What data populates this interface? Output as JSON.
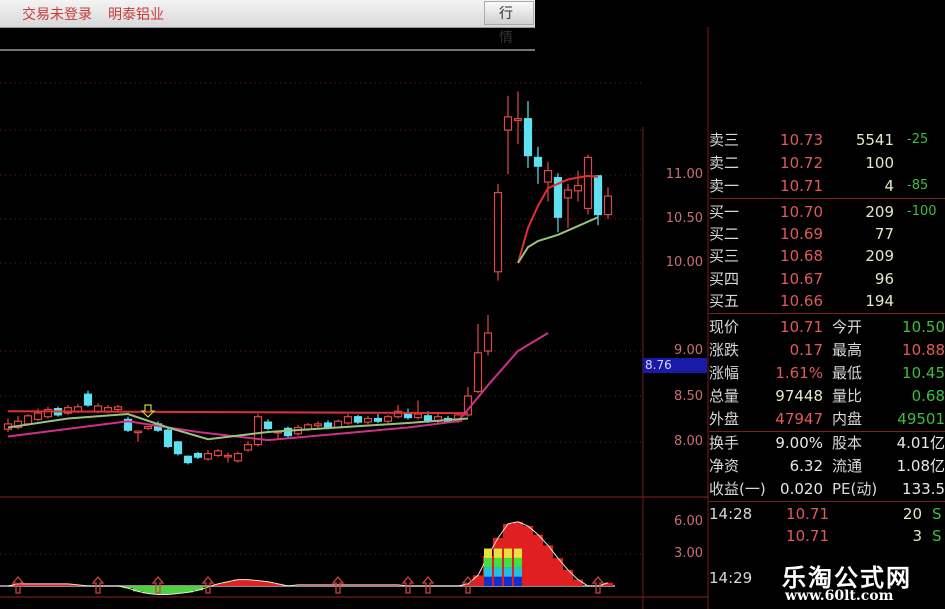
{
  "topbar": {
    "status": "交易未登录",
    "stock_name": "明泰铝业",
    "quote_button": "行 情"
  },
  "axis": {
    "price_ticks": [
      "11.00",
      "10.50",
      "10.00",
      "9.00",
      "8.50",
      "8.00"
    ],
    "indicator_ticks": [
      "6.00",
      "3.00"
    ],
    "current_price_marker": "8.76"
  },
  "colors": {
    "up": "#e04848",
    "down": "#5ee0f0",
    "ma_red": "#e03030",
    "ma_pink": "#d02f8a",
    "ma_green": "#9ac27a",
    "grid": "#7a1d1d"
  },
  "chart_data": {
    "type": "candlestick",
    "price_axis": {
      "ticks": [
        8.0,
        8.5,
        9.0,
        10.0,
        10.5,
        11.0
      ]
    },
    "candles": [
      [
        8.13,
        8.25,
        8.1,
        8.19
      ],
      [
        8.15,
        8.28,
        8.13,
        8.22
      ],
      [
        8.19,
        8.3,
        8.17,
        8.28
      ],
      [
        8.24,
        8.36,
        8.22,
        8.31
      ],
      [
        8.27,
        8.38,
        8.25,
        8.35
      ],
      [
        8.36,
        8.38,
        8.27,
        8.29
      ],
      [
        8.31,
        8.4,
        8.29,
        8.37
      ],
      [
        8.33,
        8.41,
        8.31,
        8.38
      ],
      [
        8.52,
        8.56,
        8.38,
        8.4
      ],
      [
        8.33,
        8.42,
        8.31,
        8.39
      ],
      [
        8.33,
        8.4,
        8.31,
        8.37
      ],
      [
        8.35,
        8.4,
        8.33,
        8.38
      ],
      [
        8.24,
        8.27,
        8.1,
        8.12
      ],
      [
        8.1,
        8.11,
        7.99,
        8.11
      ],
      [
        8.14,
        8.15,
        8.12,
        8.16
      ],
      [
        8.19,
        8.22,
        8.1,
        8.12
      ],
      [
        8.12,
        8.14,
        7.92,
        7.94
      ],
      [
        7.99,
        8.0,
        7.84,
        7.86
      ],
      [
        7.83,
        7.84,
        7.74,
        7.76
      ],
      [
        7.86,
        7.88,
        7.8,
        7.82
      ],
      [
        7.8,
        7.9,
        7.78,
        7.86
      ],
      [
        7.84,
        7.91,
        7.82,
        7.89
      ],
      [
        7.83,
        7.87,
        7.76,
        7.84
      ],
      [
        7.78,
        7.88,
        7.76,
        7.86
      ],
      [
        7.9,
        8.0,
        7.88,
        7.96
      ],
      [
        7.96,
        8.3,
        7.94,
        8.27
      ],
      [
        8.21,
        8.24,
        8.12,
        8.14
      ],
      [
        8.09,
        8.11,
        8.03,
        8.11
      ],
      [
        8.14,
        8.16,
        8.04,
        8.06
      ],
      [
        8.08,
        8.18,
        8.06,
        8.15
      ],
      [
        8.13,
        8.2,
        8.11,
        8.18
      ],
      [
        8.17,
        8.22,
        8.14,
        8.19
      ],
      [
        8.2,
        8.23,
        8.13,
        8.15
      ],
      [
        8.15,
        8.24,
        8.14,
        8.22
      ],
      [
        8.2,
        8.3,
        8.18,
        8.27
      ],
      [
        8.27,
        8.29,
        8.19,
        8.21
      ],
      [
        8.21,
        8.28,
        8.19,
        8.25
      ],
      [
        8.25,
        8.3,
        8.2,
        8.22
      ],
      [
        8.22,
        8.29,
        8.2,
        8.27
      ],
      [
        8.27,
        8.4,
        8.25,
        8.33
      ],
      [
        8.31,
        8.36,
        8.24,
        8.26
      ],
      [
        8.26,
        8.45,
        8.24,
        8.3
      ],
      [
        8.28,
        8.33,
        8.2,
        8.22
      ],
      [
        8.22,
        8.3,
        8.2,
        8.27
      ],
      [
        8.25,
        8.28,
        8.2,
        8.22
      ],
      [
        8.22,
        8.32,
        8.2,
        8.29
      ],
      [
        8.29,
        8.6,
        8.27,
        8.5
      ],
      [
        8.55,
        9.3,
        8.53,
        8.98
      ],
      [
        9.0,
        9.4,
        8.95,
        9.2
      ],
      [
        9.9,
        10.9,
        9.8,
        10.8
      ],
      [
        11.51,
        11.9,
        11.01,
        11.66
      ],
      [
        11.62,
        11.95,
        11.35,
        11.64
      ],
      [
        11.64,
        11.84,
        11.08,
        11.22
      ],
      [
        11.2,
        11.32,
        10.9,
        11.1
      ],
      [
        10.92,
        11.15,
        10.7,
        11.05
      ],
      [
        10.97,
        11.02,
        10.35,
        10.52
      ],
      [
        10.74,
        10.9,
        10.4,
        10.83
      ],
      [
        10.82,
        11.05,
        10.7,
        10.88
      ],
      [
        10.62,
        11.23,
        10.55,
        11.2
      ],
      [
        10.99,
        11.0,
        10.43,
        10.55
      ],
      [
        10.55,
        10.86,
        10.5,
        10.76
      ]
    ],
    "moving_averages": [
      {
        "color": "#e03030",
        "points": [
          [
            0,
            8.33
          ],
          [
            46,
            8.31
          ]
        ]
      },
      {
        "color": "#e03030",
        "points": [
          [
            51,
            10.0
          ],
          [
            52,
            10.4
          ],
          [
            53,
            10.65
          ],
          [
            54,
            10.85
          ],
          [
            56,
            10.95
          ],
          [
            58,
            10.99
          ],
          [
            59,
            10.98
          ]
        ]
      },
      {
        "color": "#d02f8a",
        "points": [
          [
            0,
            8.05
          ],
          [
            12,
            8.22
          ],
          [
            19,
            8.1
          ],
          [
            26,
            8.01
          ],
          [
            40,
            8.15
          ],
          [
            45,
            8.22
          ],
          [
            46,
            8.35
          ],
          [
            48,
            8.62
          ],
          [
            51,
            9.0
          ],
          [
            54,
            9.2
          ]
        ]
      },
      {
        "color": "#9ac27a",
        "points": [
          [
            0,
            8.15
          ],
          [
            6,
            8.25
          ],
          [
            12,
            8.3
          ],
          [
            16,
            8.15
          ],
          [
            20,
            8.02
          ],
          [
            26,
            8.1
          ],
          [
            40,
            8.2
          ],
          [
            46,
            8.25
          ]
        ]
      },
      {
        "color": "#9ac27a",
        "points": [
          [
            51,
            10.0
          ],
          [
            52,
            10.18
          ],
          [
            53,
            10.25
          ],
          [
            55,
            10.32
          ],
          [
            57,
            10.42
          ],
          [
            59,
            10.52
          ]
        ]
      }
    ],
    "indicator": {
      "ticks": [
        3.0,
        6.0
      ],
      "values": [
        0,
        0.2,
        0.2,
        0.2,
        0.2,
        0.2,
        0.2,
        0.1,
        0,
        0,
        0,
        0,
        -0.2,
        -0.5,
        -0.7,
        -0.8,
        -0.8,
        -0.7,
        -0.6,
        -0.4,
        -0.1,
        0.2,
        0.4,
        0.6,
        0.6,
        0.5,
        0.4,
        0.2,
        0,
        0.1,
        0.1,
        0.1,
        0.1,
        0.1,
        0.1,
        0.1,
        0.1,
        0.1,
        0.1,
        0.1,
        0,
        0,
        0,
        0,
        0,
        0,
        0.2,
        1.0,
        2.8,
        4.5,
        5.8,
        6.0,
        5.6,
        4.8,
        3.8,
        2.6,
        1.5,
        0.6,
        0,
        0,
        0.3
      ],
      "arrow_indices": [
        1,
        9,
        15,
        20,
        33,
        40,
        42,
        46,
        59
      ],
      "colored_bar_indices": [
        48,
        49,
        50,
        51
      ],
      "colored_bar_level": 3.5
    }
  },
  "order_book": {
    "sell": [
      {
        "label": "卖三",
        "price": "10.73",
        "volume": "5541",
        "change": "-25"
      },
      {
        "label": "卖二",
        "price": "10.72",
        "volume": "100",
        "change": ""
      },
      {
        "label": "卖一",
        "price": "10.71",
        "volume": "4",
        "change": "-85"
      }
    ],
    "buy": [
      {
        "label": "买一",
        "price": "10.70",
        "volume": "209",
        "change": "-100"
      },
      {
        "label": "买二",
        "price": "10.69",
        "volume": "77",
        "change": ""
      },
      {
        "label": "买三",
        "price": "10.68",
        "volume": "209",
        "change": ""
      },
      {
        "label": "买四",
        "price": "10.67",
        "volume": "96",
        "change": ""
      },
      {
        "label": "买五",
        "price": "10.66",
        "volume": "194",
        "change": ""
      }
    ]
  },
  "stats": [
    {
      "label": "现价",
      "value": "10.71",
      "label2": "今开",
      "value2": "10.50",
      "c1": "red",
      "c2": "green"
    },
    {
      "label": "涨跌",
      "value": "0.17",
      "label2": "最高",
      "value2": "10.88",
      "c1": "red",
      "c2": "red"
    },
    {
      "label": "涨幅",
      "value": "1.61%",
      "label2": "最低",
      "value2": "10.45",
      "c1": "red",
      "c2": "green"
    },
    {
      "label": "总量",
      "value": "97448",
      "label2": "量比",
      "value2": "0.68",
      "c1": "yel",
      "c2": "green"
    },
    {
      "label": "外盘",
      "value": "47947",
      "label2": "内盘",
      "value2": "49501",
      "c1": "red",
      "c2": "green"
    }
  ],
  "fundamentals": [
    {
      "label": "换手",
      "value": "9.00%",
      "label2": "股本",
      "value2": "4.01亿"
    },
    {
      "label": "净资",
      "value": "6.32",
      "label2": "流通",
      "value2": "1.08亿"
    },
    {
      "label": "收益(一)",
      "value": "0.020",
      "label2": "PE(动)",
      "value2": "133.5"
    }
  ],
  "ticks": [
    {
      "time": "14:28",
      "price": "10.71",
      "volume": "20",
      "side": "S"
    },
    {
      "time": "",
      "price": "10.71",
      "volume": "3",
      "side": "S"
    },
    {
      "time": "14:29",
      "price": "",
      "volume": "",
      "side": ""
    }
  ],
  "watermark": {
    "name": "乐淘公式网",
    "url": "www.60lt.com"
  }
}
